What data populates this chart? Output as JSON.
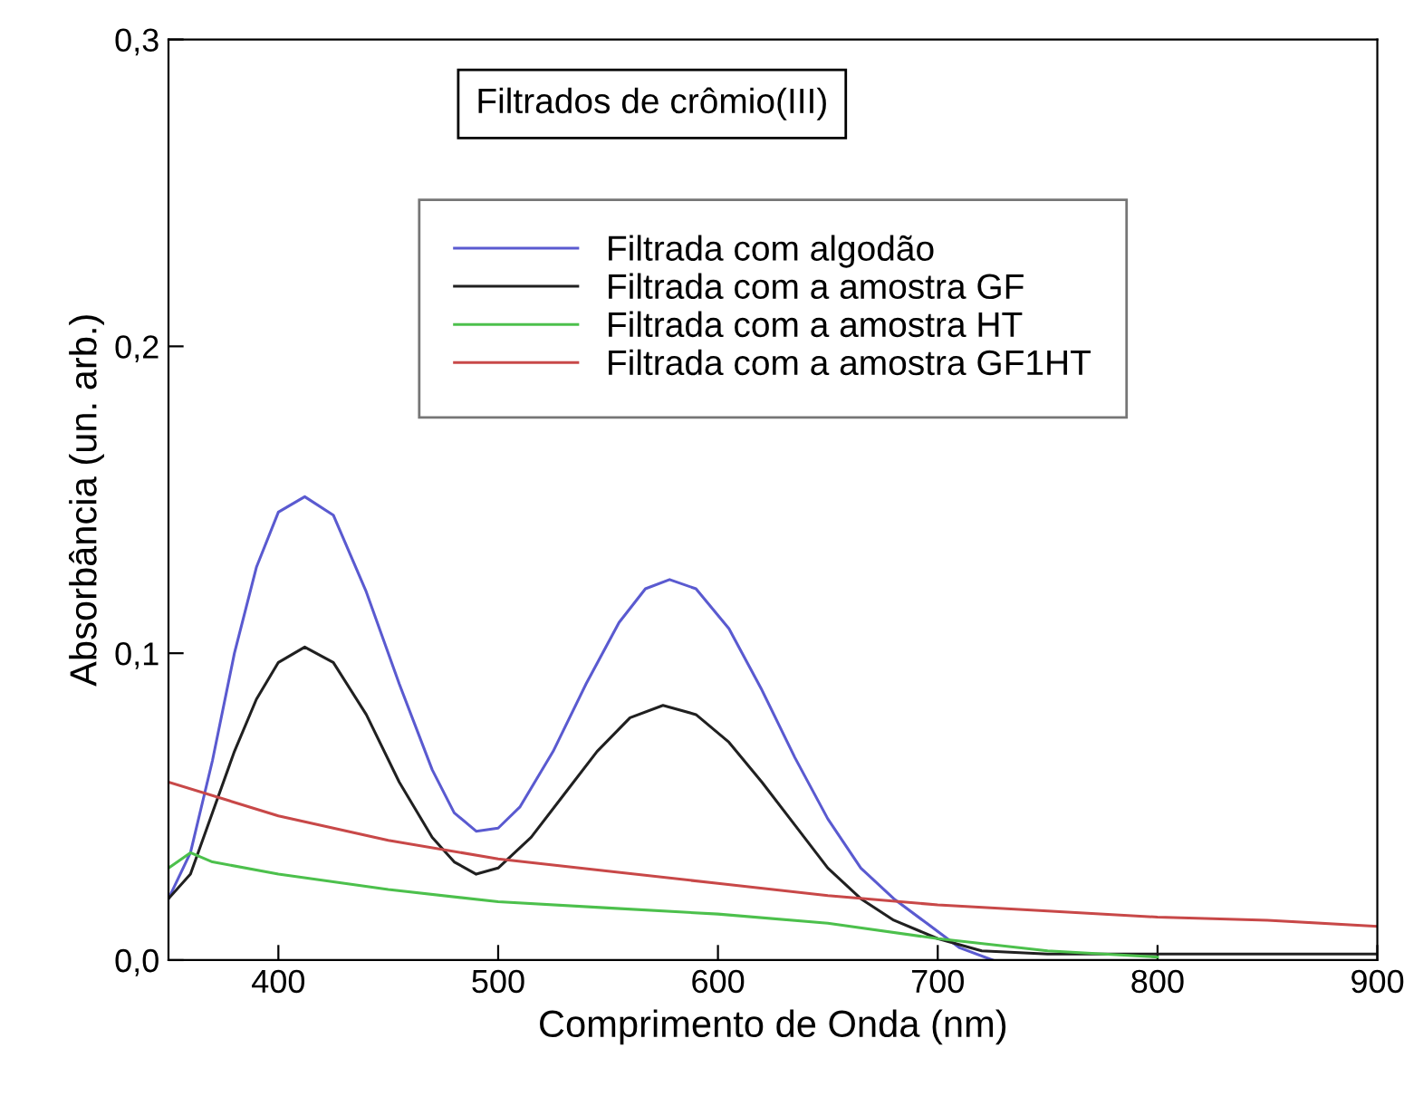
{
  "chart_data": {
    "type": "line",
    "title": "Filtrados de crômio(III)",
    "xlabel": "Comprimento de Onda (nm)",
    "ylabel": "Absorbância (un. arb.)",
    "xlim": [
      350,
      900
    ],
    "ylim": [
      0,
      0.3
    ],
    "xticks": [
      400,
      500,
      600,
      700,
      800,
      900
    ],
    "yticks": [
      {
        "value": 0,
        "label": "0,0"
      },
      {
        "value": 0.1,
        "label": "0,1"
      },
      {
        "value": 0.2,
        "label": "0,2"
      },
      {
        "value": 0.3,
        "label": "0,3"
      }
    ],
    "grid": false,
    "legend": "top",
    "marker": "none",
    "line_style": "solid",
    "series": [
      {
        "name": "Filtrada com algodão",
        "color": "#5a5ad0",
        "x": [
          350,
          360,
          370,
          380,
          390,
          400,
          412,
          425,
          440,
          455,
          470,
          480,
          490,
          500,
          510,
          525,
          540,
          555,
          567,
          578,
          590,
          605,
          620,
          635,
          650,
          665,
          680,
          695,
          710,
          725
        ],
        "values": [
          0.02,
          0.035,
          0.065,
          0.1,
          0.128,
          0.146,
          0.151,
          0.145,
          0.12,
          0.09,
          0.062,
          0.048,
          0.042,
          0.043,
          0.05,
          0.068,
          0.09,
          0.11,
          0.121,
          0.124,
          0.121,
          0.108,
          0.088,
          0.066,
          0.046,
          0.03,
          0.02,
          0.012,
          0.004,
          0.0
        ]
      },
      {
        "name": "Filtrada com a amostra GF",
        "color": "#202020",
        "x": [
          350,
          360,
          370,
          380,
          390,
          400,
          412,
          425,
          440,
          455,
          470,
          480,
          490,
          500,
          515,
          530,
          545,
          560,
          575,
          590,
          605,
          620,
          635,
          650,
          665,
          680,
          700,
          720,
          750,
          800,
          850,
          900
        ],
        "values": [
          0.02,
          0.028,
          0.048,
          0.068,
          0.085,
          0.097,
          0.102,
          0.097,
          0.08,
          0.058,
          0.04,
          0.032,
          0.028,
          0.03,
          0.04,
          0.054,
          0.068,
          0.079,
          0.083,
          0.08,
          0.071,
          0.058,
          0.044,
          0.03,
          0.02,
          0.013,
          0.007,
          0.003,
          0.002,
          0.002,
          0.002,
          0.002
        ]
      },
      {
        "name": "Filtrada com a amostra HT",
        "color": "#4cc04c",
        "x": [
          350,
          360,
          370,
          400,
          450,
          500,
          550,
          600,
          650,
          700,
          750,
          800
        ],
        "values": [
          0.03,
          0.035,
          0.032,
          0.028,
          0.023,
          0.019,
          0.017,
          0.015,
          0.012,
          0.007,
          0.003,
          0.001
        ]
      },
      {
        "name": "Filtrada com a amostra GF1HT",
        "color": "#c84848",
        "x": [
          350,
          400,
          450,
          500,
          550,
          600,
          650,
          700,
          750,
          800,
          850,
          900
        ],
        "values": [
          0.058,
          0.047,
          0.039,
          0.033,
          0.029,
          0.025,
          0.021,
          0.018,
          0.016,
          0.014,
          0.013,
          0.011
        ]
      }
    ]
  }
}
